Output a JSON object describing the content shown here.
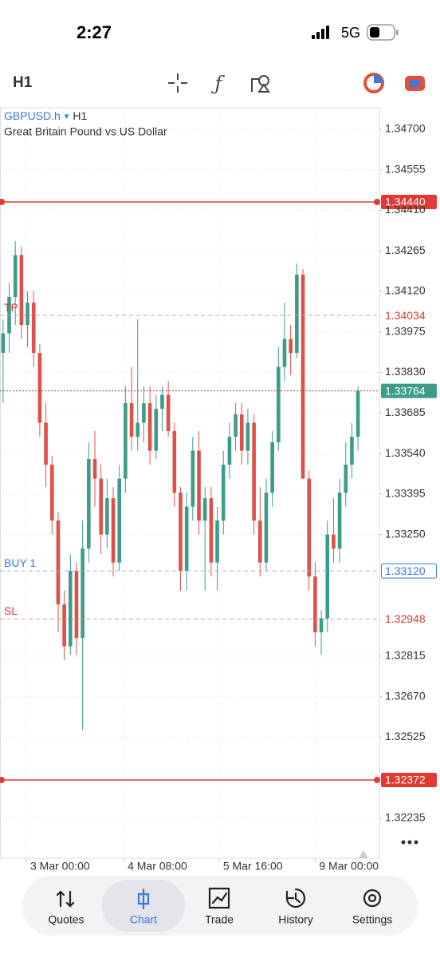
{
  "status_bar": {
    "time": "2:27",
    "network": "5G"
  },
  "toolbar": {
    "timeframe": "H1"
  },
  "chart_data": {
    "type": "candlestick",
    "symbol": "GBPUSD.h",
    "timeframe": "H1",
    "subtitle": "Great Britain Pound vs US Dollar",
    "colors": {
      "up": "#3d9c89",
      "down": "#de5049"
    },
    "candles": {
      "open": [
        1.339,
        1.3397,
        1.341,
        1.3425,
        1.34,
        1.3408,
        1.339,
        1.3365,
        1.335,
        1.333,
        1.33,
        1.3285,
        1.3312,
        1.3288,
        1.332,
        1.3352,
        1.3345,
        1.3325,
        1.3338,
        1.3315,
        1.3345,
        1.3372,
        1.336,
        1.3365,
        1.3372,
        1.3355,
        1.337,
        1.3375,
        1.3362,
        1.334,
        1.3312,
        1.3335,
        1.3355,
        1.333,
        1.3338,
        1.3315,
        1.333,
        1.335,
        1.336,
        1.3368,
        1.3355,
        1.3365,
        1.333,
        1.3315,
        1.334,
        1.3358,
        1.3385,
        1.3395,
        1.339,
        1.3418,
        1.3345,
        1.331,
        1.329,
        1.3295,
        1.3325,
        1.332,
        1.334,
        1.335,
        1.336
      ],
      "high": [
        1.3402,
        1.3415,
        1.343,
        1.3428,
        1.3412,
        1.3412,
        1.3393,
        1.3372,
        1.3353,
        1.3333,
        1.3305,
        1.3318,
        1.3315,
        1.333,
        1.3358,
        1.3362,
        1.335,
        1.3345,
        1.3342,
        1.335,
        1.3378,
        1.3385,
        1.3402,
        1.3378,
        1.3378,
        1.3375,
        1.3378,
        1.338,
        1.3365,
        1.3342,
        1.334,
        1.336,
        1.3362,
        1.3342,
        1.3342,
        1.3335,
        1.3355,
        1.3365,
        1.3372,
        1.3372,
        1.337,
        1.3368,
        1.3342,
        1.3345,
        1.3362,
        1.3392,
        1.3408,
        1.34,
        1.3422,
        1.342,
        1.3348,
        1.3315,
        1.3298,
        1.333,
        1.3338,
        1.3345,
        1.3358,
        1.3365,
        1.3378
      ],
      "low": [
        1.3372,
        1.339,
        1.34,
        1.3395,
        1.3392,
        1.3385,
        1.336,
        1.3342,
        1.3325,
        1.329,
        1.328,
        1.3282,
        1.3282,
        1.3255,
        1.3315,
        1.3335,
        1.3318,
        1.332,
        1.331,
        1.3312,
        1.334,
        1.3355,
        1.3355,
        1.3358,
        1.335,
        1.3352,
        1.3362,
        1.336,
        1.3335,
        1.3305,
        1.3305,
        1.333,
        1.3325,
        1.3305,
        1.331,
        1.3305,
        1.3325,
        1.3345,
        1.3355,
        1.335,
        1.335,
        1.3325,
        1.331,
        1.3312,
        1.3335,
        1.3355,
        1.338,
        1.3382,
        1.3388,
        1.3395,
        1.3305,
        1.3285,
        1.3282,
        1.329,
        1.3315,
        1.3315,
        1.3335,
        1.3345,
        1.3355
      ],
      "close": [
        1.3397,
        1.341,
        1.3425,
        1.34,
        1.3408,
        1.339,
        1.3365,
        1.335,
        1.333,
        1.33,
        1.3285,
        1.3312,
        1.3288,
        1.332,
        1.3352,
        1.3345,
        1.3325,
        1.3338,
        1.3315,
        1.3345,
        1.3372,
        1.336,
        1.3365,
        1.3372,
        1.3355,
        1.337,
        1.3375,
        1.3362,
        1.334,
        1.3312,
        1.3335,
        1.3355,
        1.333,
        1.3338,
        1.3315,
        1.333,
        1.335,
        1.336,
        1.3368,
        1.3355,
        1.3365,
        1.333,
        1.3315,
        1.334,
        1.3358,
        1.3385,
        1.3395,
        1.339,
        1.3418,
        1.3345,
        1.331,
        1.329,
        1.3295,
        1.3325,
        1.332,
        1.334,
        1.335,
        1.336,
        1.33764
      ]
    },
    "xlim": [
      -0.5,
      61.5
    ],
    "xticks": [
      {
        "value": 3.8,
        "label": "3 Mar 00:00"
      },
      {
        "value": 19.7,
        "label": "4 Mar 08:00"
      },
      {
        "value": 35.3,
        "label": "5 Mar 16:00"
      },
      {
        "value": 51,
        "label": "9 Mar 00:00"
      }
    ],
    "ylim": [
      1.32092,
      1.34777
    ],
    "yticks": [
      {
        "value": 1.347,
        "label": "1.34700"
      },
      {
        "value": 1.34555,
        "label": "1.34555"
      },
      {
        "value": 1.3441,
        "label": "1.34410"
      },
      {
        "value": 1.34265,
        "label": "1.34265"
      },
      {
        "value": 1.3412,
        "label": "1.34120"
      },
      {
        "value": 1.33975,
        "label": "1.33975"
      },
      {
        "value": 1.3383,
        "label": "1.33830"
      },
      {
        "value": 1.33685,
        "label": "1.33685"
      },
      {
        "value": 1.3354,
        "label": "1.33540"
      },
      {
        "value": 1.33395,
        "label": "1.33395"
      },
      {
        "value": 1.3325,
        "label": "1.33250"
      },
      {
        "value": 1.32815,
        "label": "1.32815"
      },
      {
        "value": 1.3267,
        "label": "1.32670"
      },
      {
        "value": 1.32525,
        "label": "1.32525"
      },
      {
        "value": 1.32235,
        "label": "1.32235"
      }
    ],
    "grid": true,
    "levels": [
      {
        "value": 1.3444,
        "value_label": "1.34440",
        "color": "#e03a32",
        "style": "solid",
        "label_style": "filled",
        "label_color": "#e03a32"
      },
      {
        "name": "TP",
        "value": 1.34034,
        "value_label": "1.34034",
        "color": "#e89a94",
        "style": "dashed",
        "label_style": "text",
        "label_color": "#d83a30"
      },
      {
        "value": 1.33764,
        "value_label": "1.33764",
        "color": "#b03a30",
        "style": "dotted",
        "label_style": "filled",
        "label_color": "#3d9c89"
      },
      {
        "name": "BUY 1",
        "value": 1.3312,
        "value_label": "1.33120",
        "color": "#9db8e8",
        "style": "dashed",
        "label_style": "outline",
        "label_color": "#3b78d8"
      },
      {
        "name": "SL",
        "value": 1.32948,
        "value_label": "1.32948",
        "color": "#e89a94",
        "style": "dashed",
        "label_style": "text",
        "label_color": "#d83a30"
      },
      {
        "value": 1.32372,
        "value_label": "1.32372",
        "color": "#e03a32",
        "style": "solid",
        "label_style": "filled",
        "label_color": "#e03a32"
      }
    ]
  },
  "nav": {
    "tabs": [
      "Quotes",
      "Chart",
      "Trade",
      "History",
      "Settings"
    ],
    "active": 1
  }
}
